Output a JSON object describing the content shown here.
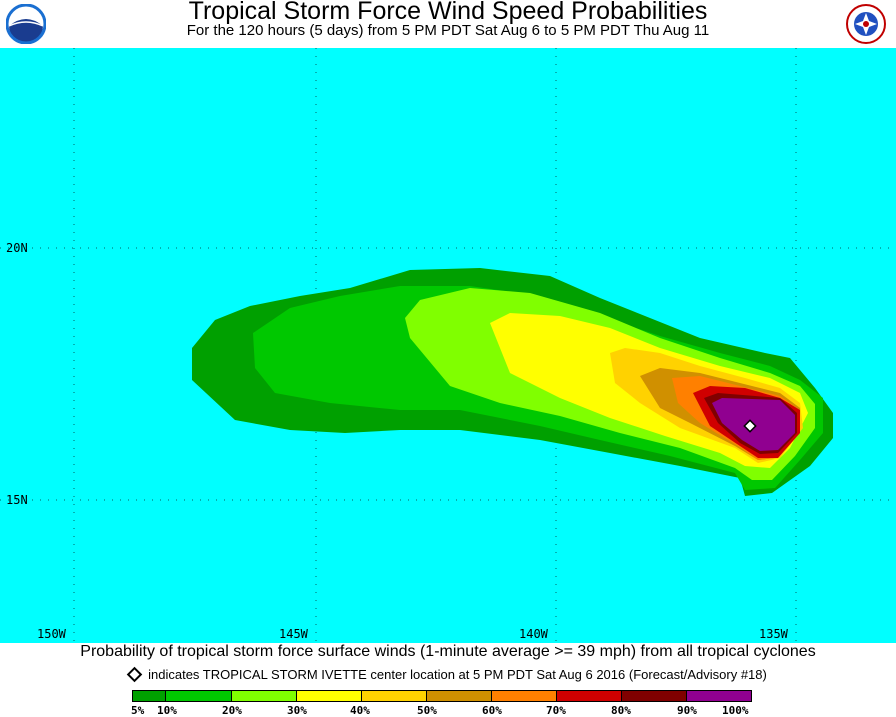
{
  "header": {
    "title": "Tropical Storm Force Wind Speed Probabilities",
    "subtitle": "For the 120 hours (5 days) from 5 PM PDT Sat Aug 6 to 5 PM PDT Thu Aug 11",
    "left_logo_icon": "noaa-logo-icon",
    "right_logo_icon": "nws-logo-icon"
  },
  "map": {
    "background_color": "#00ffff",
    "lat_labels": [
      "20N",
      "15N"
    ],
    "lon_labels": [
      "150W",
      "145W",
      "140W",
      "135W"
    ],
    "storm_name": "TROPICAL STORM IVETTE",
    "center_marker_icon": "storm-center-diamond-icon",
    "probability_levels": [
      {
        "range": "5-10%",
        "color": "#00a000"
      },
      {
        "range": "10-20%",
        "color": "#00c800"
      },
      {
        "range": "20-30%",
        "color": "#80ff00"
      },
      {
        "range": "30-40%",
        "color": "#ffff00"
      },
      {
        "range": "40-50%",
        "color": "#ffd200"
      },
      {
        "range": "50-60%",
        "color": "#d09000"
      },
      {
        "range": "60-70%",
        "color": "#ff8000"
      },
      {
        "range": "70-80%",
        "color": "#d00000"
      },
      {
        "range": "80-90%",
        "color": "#800000"
      },
      {
        "range": "90-100%",
        "color": "#900090"
      }
    ]
  },
  "caption": {
    "main": "Probability of tropical storm force surface winds (1-minute average >= 39 mph) from all tropical cyclones",
    "legend_note": "indicates TROPICAL STORM IVETTE center location at 5 PM PDT Sat Aug 6 2016 (Forecast/Advisory #18)"
  },
  "colorbar": {
    "labels": [
      "5%",
      "10%",
      "20%",
      "30%",
      "40%",
      "50%",
      "60%",
      "70%",
      "80%",
      "90%",
      "100%"
    ],
    "colors": [
      "#00a000",
      "#00c800",
      "#80ff00",
      "#ffff00",
      "#ffd200",
      "#d09000",
      "#ff8000",
      "#d00000",
      "#800000",
      "#900090"
    ]
  }
}
